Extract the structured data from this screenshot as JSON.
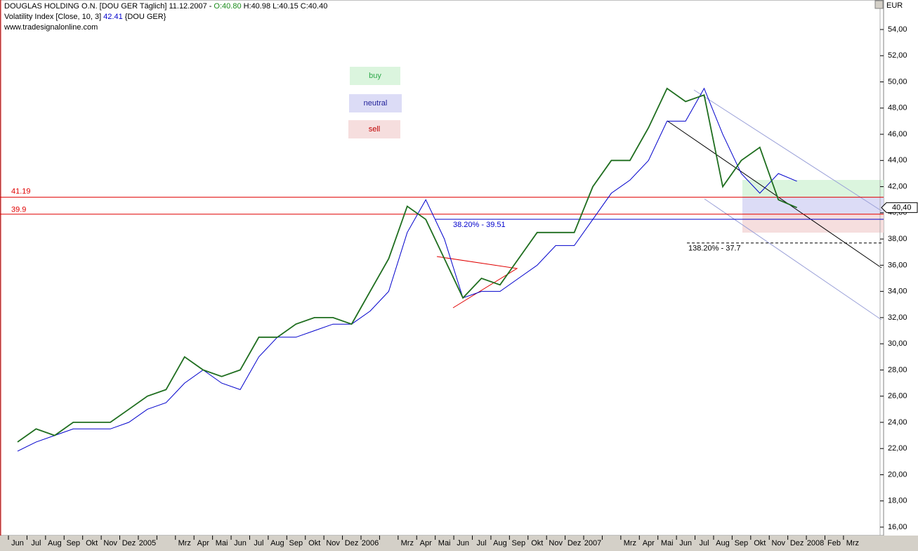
{
  "chart_data": {
    "type": "line",
    "header": {
      "info": "[DOU GER  Täglich] 11.12.2007 -",
      "open": "O:40.80",
      "high": "H:40.98",
      "low": "L:40.15",
      "close": "C:40.40",
      "indicator_params": "[Close, 10, 3]",
      "indicator_value": "42.41",
      "indicator_symbol": "{DOU GER}",
      "source": "www.tradesignalonline.com"
    },
    "y_unit": "EUR",
    "categories": [
      "Jun",
      "Jul",
      "Aug",
      "Sep",
      "Okt",
      "Nov",
      "Dez",
      "2005",
      null,
      "Mrz",
      "Apr",
      "Mai",
      "Jun",
      "Jul",
      "Aug",
      "Sep",
      "Okt",
      "Nov",
      "Dez",
      "2006",
      null,
      "Mrz",
      "Apr",
      "Mai",
      "Jun",
      "Jul",
      "Aug",
      "Sep",
      "Okt",
      "Nov",
      "Dez",
      "2007",
      null,
      "Mrz",
      "Apr",
      "Mai",
      "Jun",
      "Jul",
      "Aug",
      "Sep",
      "Okt",
      "Nov",
      "Dez",
      "2008",
      "Feb",
      "Mrz"
    ],
    "series": [
      {
        "name": "DOUGLAS HOLDING O.N.",
        "color": "#1f6e1f",
        "values": [
          22.5,
          23.5,
          23,
          24,
          24,
          24,
          25,
          26,
          26.5,
          29,
          28,
          27.5,
          28,
          30.5,
          30.5,
          31.5,
          32,
          32,
          31.5,
          34,
          36.5,
          40.5,
          39.5,
          36.5,
          33.5,
          35,
          34.5,
          36.5,
          38.5,
          38.5,
          38.5,
          42,
          44,
          44,
          46.5,
          49.5,
          48.5,
          49,
          42,
          44,
          45,
          41,
          40.4,
          null,
          null,
          null
        ]
      },
      {
        "name": "Volatility Index",
        "color": "#0000cc",
        "values": [
          21.8,
          22.5,
          23,
          23.5,
          23.5,
          23.5,
          24,
          25,
          25.5,
          27,
          28,
          27,
          26.5,
          29,
          30.5,
          30.5,
          31,
          31.5,
          31.5,
          32.5,
          34,
          38.5,
          41,
          38,
          33.5,
          34,
          34,
          35,
          36,
          37.5,
          37.5,
          39.5,
          41.5,
          42.5,
          44,
          47,
          47,
          49.5,
          46,
          43,
          41.5,
          43,
          42.41,
          null,
          null,
          null
        ]
      }
    ],
    "ylim": [
      16,
      54
    ],
    "yticks": [
      {
        "value": 16,
        "label": "16,00"
      },
      {
        "value": 18,
        "label": "18,00"
      },
      {
        "value": 20,
        "label": "20,00"
      },
      {
        "value": 22,
        "label": "22,00"
      },
      {
        "value": 24,
        "label": "24,00"
      },
      {
        "value": 26,
        "label": "26,00"
      },
      {
        "value": 28,
        "label": "28,00"
      },
      {
        "value": 30,
        "label": "30,00"
      },
      {
        "value": 32,
        "label": "32,00"
      },
      {
        "value": 34,
        "label": "34,00"
      },
      {
        "value": 36,
        "label": "36,00"
      },
      {
        "value": 38,
        "label": "38,00"
      },
      {
        "value": 40,
        "label": "40,00"
      },
      {
        "value": 42,
        "label": "42,00"
      },
      {
        "value": 44,
        "label": "44,00"
      },
      {
        "value": 46,
        "label": "46,00"
      },
      {
        "value": 48,
        "label": "48,00"
      },
      {
        "value": 50,
        "label": "50,00"
      },
      {
        "value": 52,
        "label": "52,00"
      },
      {
        "value": 54,
        "label": "54,00"
      }
    ],
    "levels": [
      {
        "value": 41.19,
        "color": "#e00000"
      },
      {
        "value": 39.9,
        "color": "#e00000"
      },
      {
        "value": 39.51,
        "label": "38.20% - 39.51",
        "color": "#0000cc"
      },
      {
        "value": 37.7,
        "label": "138.20% - 37.7",
        "color": "#000000",
        "dashed": true
      }
    ],
    "last": {
      "value": 40.4,
      "label": "40,40"
    },
    "legend_boxes": [
      {
        "label": "buy",
        "color": "#dbf5de",
        "text_color": "#2ea84a"
      },
      {
        "label": "neutral",
        "color": "#dcdcf6",
        "text_color": "#22229a"
      },
      {
        "label": "sell",
        "color": "#f6dede",
        "text_color": "#c00000"
      }
    ]
  }
}
